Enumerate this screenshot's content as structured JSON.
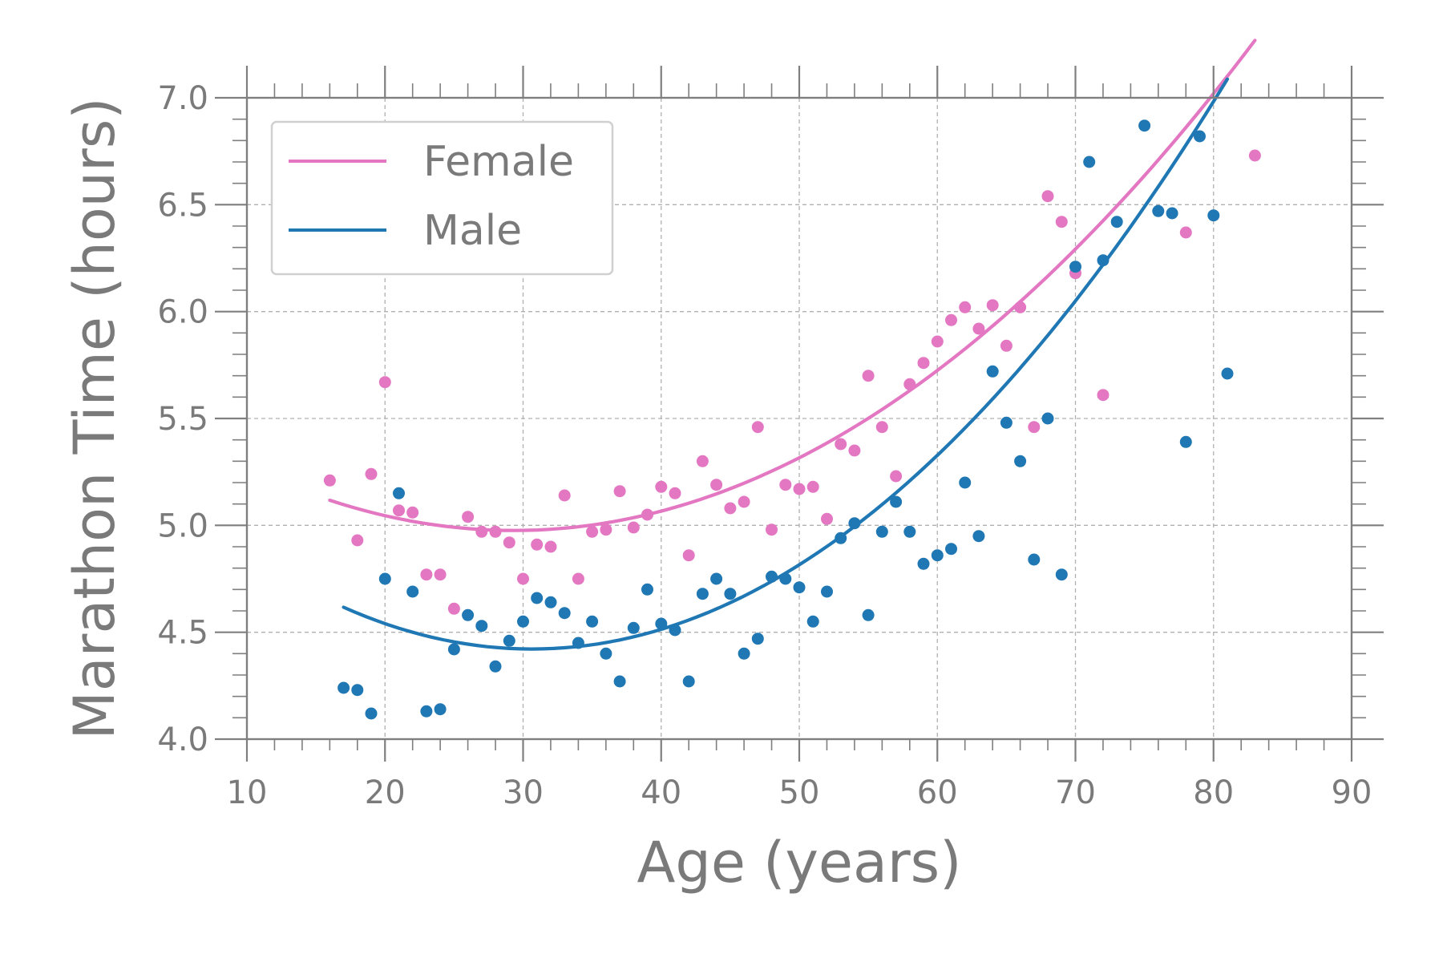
{
  "chart_data": {
    "type": "scatter",
    "title": "",
    "xlabel": "Age (years)",
    "ylabel": "Marathon Time (hours)",
    "xlim": [
      10,
      90
    ],
    "ylim": [
      4.0,
      7.0
    ],
    "x_ticks": [
      "10",
      "20",
      "30",
      "40",
      "50",
      "60",
      "70",
      "80",
      "90"
    ],
    "y_ticks": [
      "4.0",
      "4.5",
      "5.0",
      "5.5",
      "6.0",
      "6.5",
      "7.0"
    ],
    "grid": true,
    "legend_position": "top-left",
    "series": [
      {
        "name": "Female",
        "color": "#e377c2",
        "points": [
          [
            16,
            5.21
          ],
          [
            18,
            4.93
          ],
          [
            19,
            5.24
          ],
          [
            20,
            5.67
          ],
          [
            21,
            5.07
          ],
          [
            22,
            5.06
          ],
          [
            23,
            4.77
          ],
          [
            24,
            4.77
          ],
          [
            25,
            4.61
          ],
          [
            26,
            5.04
          ],
          [
            27,
            4.97
          ],
          [
            28,
            4.97
          ],
          [
            29,
            4.92
          ],
          [
            30,
            4.75
          ],
          [
            31,
            4.91
          ],
          [
            32,
            4.9
          ],
          [
            33,
            5.14
          ],
          [
            34,
            4.75
          ],
          [
            35,
            4.97
          ],
          [
            36,
            4.98
          ],
          [
            37,
            5.16
          ],
          [
            38,
            4.99
          ],
          [
            39,
            5.05
          ],
          [
            40,
            5.18
          ],
          [
            41,
            5.15
          ],
          [
            42,
            4.86
          ],
          [
            43,
            5.3
          ],
          [
            44,
            5.19
          ],
          [
            45,
            5.08
          ],
          [
            46,
            5.11
          ],
          [
            47,
            5.46
          ],
          [
            48,
            4.98
          ],
          [
            49,
            5.19
          ],
          [
            50,
            5.17
          ],
          [
            51,
            5.18
          ],
          [
            52,
            5.03
          ],
          [
            53,
            5.38
          ],
          [
            54,
            5.35
          ],
          [
            55,
            5.7
          ],
          [
            56,
            5.46
          ],
          [
            57,
            5.23
          ],
          [
            58,
            5.66
          ],
          [
            59,
            5.76
          ],
          [
            60,
            5.86
          ],
          [
            61,
            5.96
          ],
          [
            62,
            6.02
          ],
          [
            63,
            5.92
          ],
          [
            64,
            6.03
          ],
          [
            65,
            5.84
          ],
          [
            66,
            6.02
          ],
          [
            67,
            5.46
          ],
          [
            68,
            6.54
          ],
          [
            69,
            6.42
          ],
          [
            70,
            6.18
          ],
          [
            72,
            5.61
          ],
          [
            78,
            6.37
          ],
          [
            83,
            6.73
          ]
        ],
        "fit": {
          "x_start": 16,
          "x_end": 83,
          "coefficients": [
            0.000796,
            -0.0467,
            5.661
          ]
        }
      },
      {
        "name": "Male",
        "color": "#1f77b4",
        "points": [
          [
            17,
            4.24
          ],
          [
            18,
            4.23
          ],
          [
            19,
            4.12
          ],
          [
            20,
            4.75
          ],
          [
            21,
            5.15
          ],
          [
            22,
            4.69
          ],
          [
            23,
            4.13
          ],
          [
            24,
            4.14
          ],
          [
            25,
            4.42
          ],
          [
            26,
            4.58
          ],
          [
            27,
            4.53
          ],
          [
            28,
            4.34
          ],
          [
            29,
            4.46
          ],
          [
            30,
            4.55
          ],
          [
            31,
            4.66
          ],
          [
            32,
            4.64
          ],
          [
            33,
            4.59
          ],
          [
            34,
            4.45
          ],
          [
            35,
            4.55
          ],
          [
            36,
            4.4
          ],
          [
            37,
            4.27
          ],
          [
            38,
            4.52
          ],
          [
            39,
            4.7
          ],
          [
            40,
            4.54
          ],
          [
            41,
            4.51
          ],
          [
            42,
            4.27
          ],
          [
            43,
            4.68
          ],
          [
            44,
            4.75
          ],
          [
            45,
            4.68
          ],
          [
            46,
            4.4
          ],
          [
            47,
            4.47
          ],
          [
            48,
            4.76
          ],
          [
            49,
            4.75
          ],
          [
            50,
            4.71
          ],
          [
            51,
            4.55
          ],
          [
            52,
            4.69
          ],
          [
            53,
            4.94
          ],
          [
            54,
            5.01
          ],
          [
            55,
            4.58
          ],
          [
            56,
            4.97
          ],
          [
            57,
            5.11
          ],
          [
            58,
            4.97
          ],
          [
            59,
            4.82
          ],
          [
            60,
            4.86
          ],
          [
            61,
            4.89
          ],
          [
            62,
            5.2
          ],
          [
            63,
            4.95
          ],
          [
            64,
            5.72
          ],
          [
            65,
            5.48
          ],
          [
            66,
            5.3
          ],
          [
            67,
            4.84
          ],
          [
            68,
            5.5
          ],
          [
            69,
            4.77
          ],
          [
            70,
            6.21
          ],
          [
            71,
            6.7
          ],
          [
            72,
            6.24
          ],
          [
            73,
            6.42
          ],
          [
            75,
            6.87
          ],
          [
            76,
            6.47
          ],
          [
            77,
            6.46
          ],
          [
            78,
            5.39
          ],
          [
            79,
            6.82
          ],
          [
            80,
            6.45
          ],
          [
            81,
            5.71
          ]
        ],
        "fit": {
          "x_start": 17,
          "x_end": 81,
          "coefficients": [
            0.001051,
            -0.0644,
            5.408
          ]
        }
      }
    ]
  }
}
